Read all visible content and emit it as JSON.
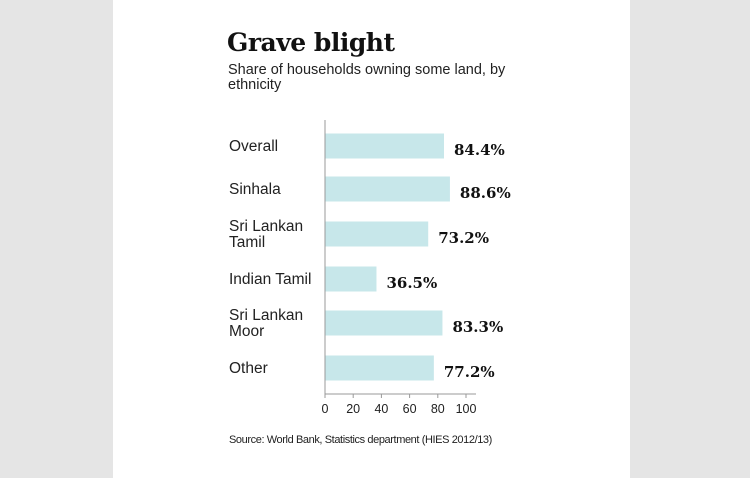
{
  "title": "Grave blight",
  "subtitle": "Share of households owning some land, by ethnicity",
  "source": "Source: World Bank, Statistics department (HIES 2012/13)",
  "colors": {
    "bar": "#c7e7ea",
    "axis": "#999999",
    "background": "#e5e5e5",
    "panel": "#ffffff"
  },
  "chart_data": {
    "type": "bar",
    "orientation": "horizontal",
    "categories": [
      [
        "Overall"
      ],
      [
        "Sinhala"
      ],
      [
        "Sri Lankan",
        "Tamil"
      ],
      [
        "Indian Tamil"
      ],
      [
        "Sri Lankan",
        "Moor"
      ],
      [
        "Other"
      ]
    ],
    "values": [
      84.4,
      88.6,
      73.2,
      36.5,
      83.3,
      77.2
    ],
    "value_labels": [
      "84.4%",
      "88.6%",
      "73.2%",
      "36.5%",
      "83.3%",
      "77.2%"
    ],
    "xlim": [
      0,
      100
    ],
    "xticks": [
      "0",
      "20",
      "40",
      "60",
      "80",
      "100"
    ],
    "grid": false
  }
}
